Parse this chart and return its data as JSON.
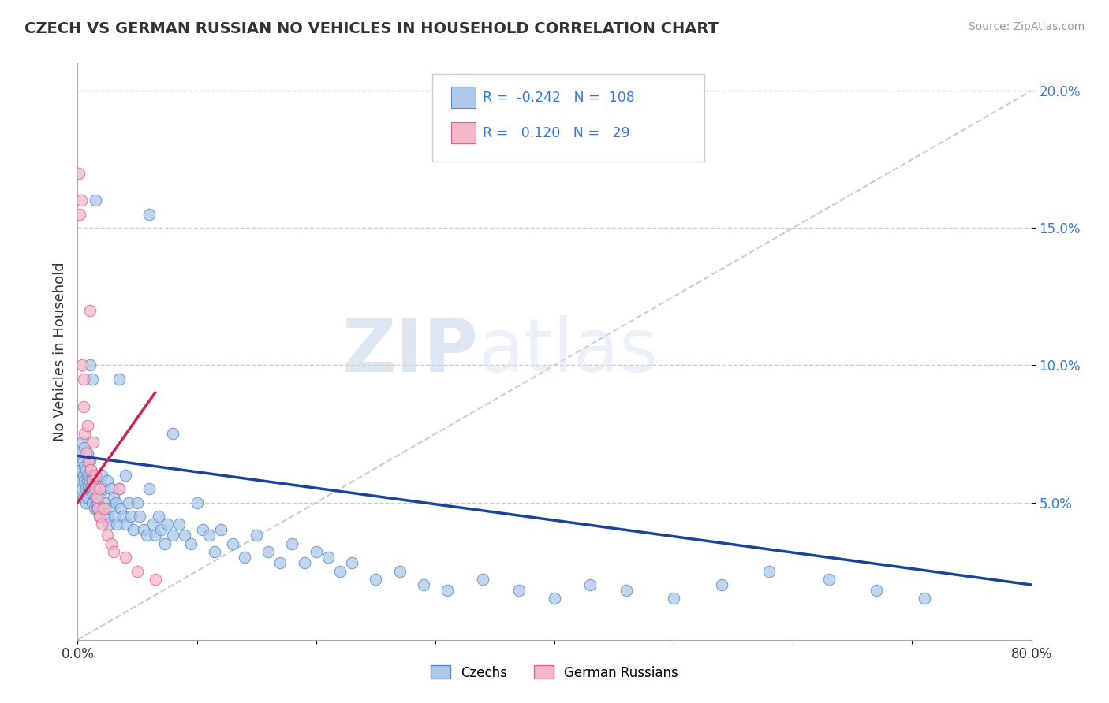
{
  "title": "CZECH VS GERMAN RUSSIAN NO VEHICLES IN HOUSEHOLD CORRELATION CHART",
  "source": "Source: ZipAtlas.com",
  "ylabel": "No Vehicles in Household",
  "xlim": [
    0.0,
    0.8
  ],
  "ylim": [
    0.0,
    0.21
  ],
  "ytick_positions": [
    0.05,
    0.1,
    0.15,
    0.2
  ],
  "ytick_labels": [
    "5.0%",
    "10.0%",
    "15.0%",
    "20.0%"
  ],
  "czech_color": "#adc8e8",
  "czech_edge": "#5588cc",
  "german_russian_color": "#f5b8c8",
  "german_russian_edge": "#e06090",
  "trend_czech_color": "#1a4499",
  "trend_german_russian_color": "#cc2255",
  "diagonal_color": "#cccccc",
  "R_czech": -0.242,
  "N_czech": 108,
  "R_german_russian": 0.12,
  "N_german_russian": 29,
  "legend_text_color": "#3377dd",
  "watermark_zip": "ZIP",
  "watermark_atlas": "atlas",
  "czech_x": [
    0.002,
    0.003,
    0.003,
    0.004,
    0.004,
    0.005,
    0.005,
    0.005,
    0.006,
    0.006,
    0.006,
    0.007,
    0.007,
    0.007,
    0.008,
    0.008,
    0.008,
    0.009,
    0.009,
    0.01,
    0.01,
    0.011,
    0.011,
    0.012,
    0.012,
    0.013,
    0.013,
    0.014,
    0.014,
    0.015,
    0.016,
    0.016,
    0.017,
    0.018,
    0.019,
    0.02,
    0.021,
    0.022,
    0.023,
    0.024,
    0.025,
    0.026,
    0.027,
    0.028,
    0.03,
    0.031,
    0.032,
    0.033,
    0.035,
    0.036,
    0.038,
    0.04,
    0.041,
    0.043,
    0.045,
    0.047,
    0.05,
    0.052,
    0.055,
    0.058,
    0.06,
    0.063,
    0.065,
    0.068,
    0.07,
    0.073,
    0.075,
    0.08,
    0.085,
    0.09,
    0.095,
    0.1,
    0.105,
    0.11,
    0.115,
    0.12,
    0.13,
    0.14,
    0.15,
    0.16,
    0.17,
    0.18,
    0.19,
    0.2,
    0.21,
    0.22,
    0.23,
    0.25,
    0.27,
    0.29,
    0.31,
    0.34,
    0.37,
    0.4,
    0.43,
    0.46,
    0.5,
    0.54,
    0.58,
    0.63,
    0.67,
    0.71,
    0.01,
    0.012,
    0.015,
    0.035,
    0.06,
    0.08
  ],
  "czech_y": [
    0.068,
    0.062,
    0.058,
    0.072,
    0.055,
    0.065,
    0.06,
    0.052,
    0.07,
    0.063,
    0.058,
    0.055,
    0.062,
    0.05,
    0.068,
    0.058,
    0.052,
    0.06,
    0.055,
    0.065,
    0.058,
    0.062,
    0.055,
    0.058,
    0.05,
    0.06,
    0.053,
    0.057,
    0.048,
    0.052,
    0.055,
    0.048,
    0.05,
    0.045,
    0.053,
    0.06,
    0.048,
    0.055,
    0.05,
    0.045,
    0.058,
    0.042,
    0.048,
    0.055,
    0.052,
    0.045,
    0.05,
    0.042,
    0.055,
    0.048,
    0.045,
    0.06,
    0.042,
    0.05,
    0.045,
    0.04,
    0.05,
    0.045,
    0.04,
    0.038,
    0.055,
    0.042,
    0.038,
    0.045,
    0.04,
    0.035,
    0.042,
    0.038,
    0.042,
    0.038,
    0.035,
    0.05,
    0.04,
    0.038,
    0.032,
    0.04,
    0.035,
    0.03,
    0.038,
    0.032,
    0.028,
    0.035,
    0.028,
    0.032,
    0.03,
    0.025,
    0.028,
    0.022,
    0.025,
    0.02,
    0.018,
    0.022,
    0.018,
    0.015,
    0.02,
    0.018,
    0.015,
    0.02,
    0.025,
    0.022,
    0.018,
    0.015,
    0.1,
    0.095,
    0.16,
    0.095,
    0.155,
    0.075
  ],
  "german_russian_x": [
    0.001,
    0.002,
    0.003,
    0.004,
    0.005,
    0.005,
    0.006,
    0.007,
    0.008,
    0.009,
    0.01,
    0.011,
    0.012,
    0.013,
    0.014,
    0.015,
    0.016,
    0.017,
    0.018,
    0.019,
    0.02,
    0.022,
    0.025,
    0.028,
    0.03,
    0.035,
    0.04,
    0.05,
    0.065
  ],
  "german_russian_y": [
    0.17,
    0.155,
    0.16,
    0.1,
    0.095,
    0.085,
    0.075,
    0.068,
    0.078,
    0.065,
    0.12,
    0.062,
    0.058,
    0.072,
    0.055,
    0.06,
    0.052,
    0.048,
    0.055,
    0.045,
    0.042,
    0.048,
    0.038,
    0.035,
    0.032,
    0.055,
    0.03,
    0.025,
    0.022
  ],
  "czech_trend_x0": 0.0,
  "czech_trend_y0": 0.067,
  "czech_trend_x1": 0.8,
  "czech_trend_y1": 0.02,
  "gr_trend_x0": 0.0,
  "gr_trend_y0": 0.05,
  "gr_trend_x1": 0.065,
  "gr_trend_y1": 0.09
}
